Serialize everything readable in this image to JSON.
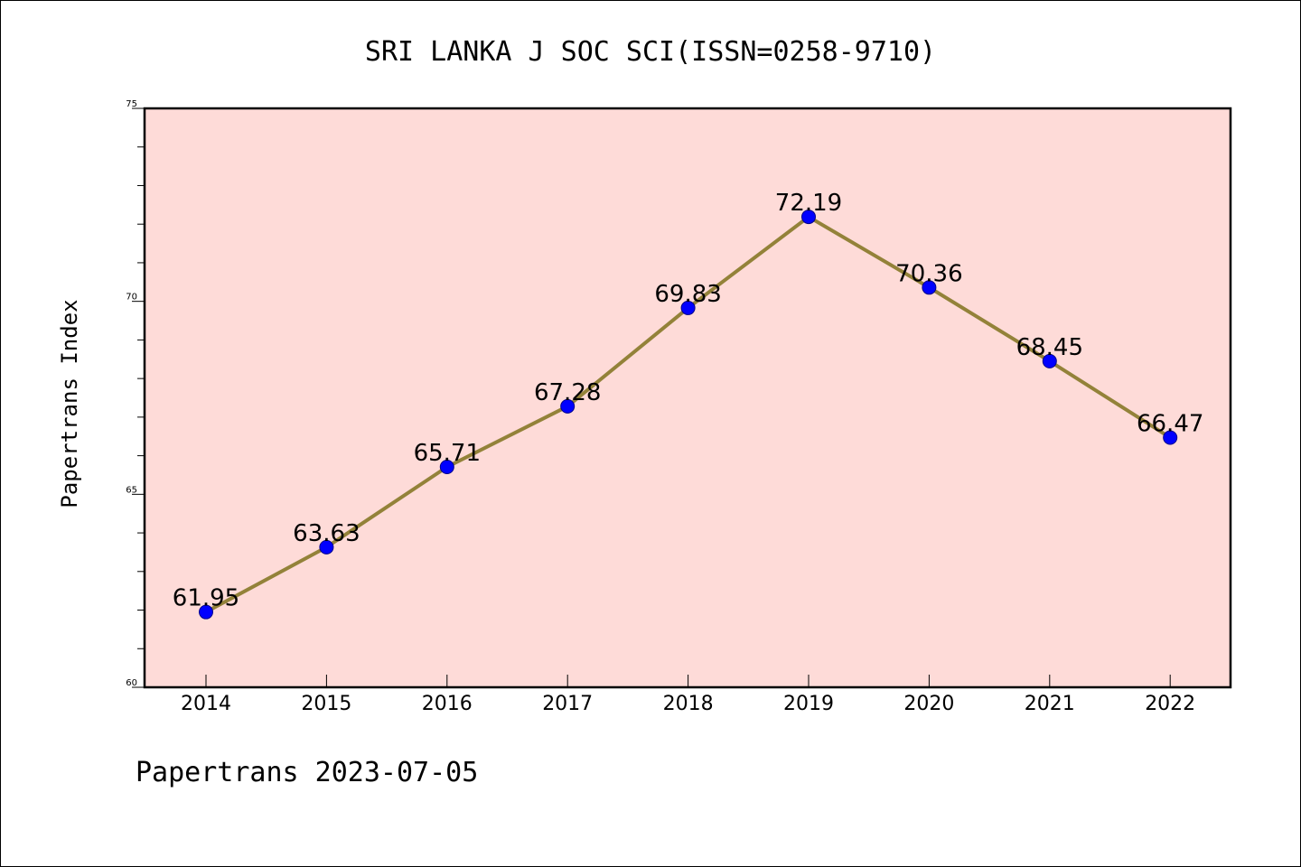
{
  "chart_data": {
    "type": "line",
    "title": "SRI LANKA J SOC SCI(ISSN=0258-9710)",
    "xlabel": "",
    "ylabel": "Papertrans Index",
    "x": [
      "2014",
      "2015",
      "2016",
      "2017",
      "2018",
      "2019",
      "2020",
      "2021",
      "2022"
    ],
    "series": [
      {
        "values": [
          61.95,
          63.63,
          65.71,
          67.28,
          69.83,
          72.19,
          70.36,
          68.45,
          66.47
        ],
        "data_labels": [
          "61.95",
          "63.63",
          "65.71",
          "67.28",
          "69.83",
          "72.19",
          "70.36",
          "68.45",
          "66.47"
        ]
      }
    ],
    "ylim": [
      60,
      75
    ],
    "yticks": [
      "60",
      "65",
      "70",
      "75"
    ],
    "grid": false,
    "legend": "none",
    "footer": "Papertrans 2023-07-05",
    "colors": {
      "plot_background": "#fedbd8",
      "line": "#938239",
      "marker": "#0000ff",
      "marker_edge": "#00008b"
    }
  }
}
